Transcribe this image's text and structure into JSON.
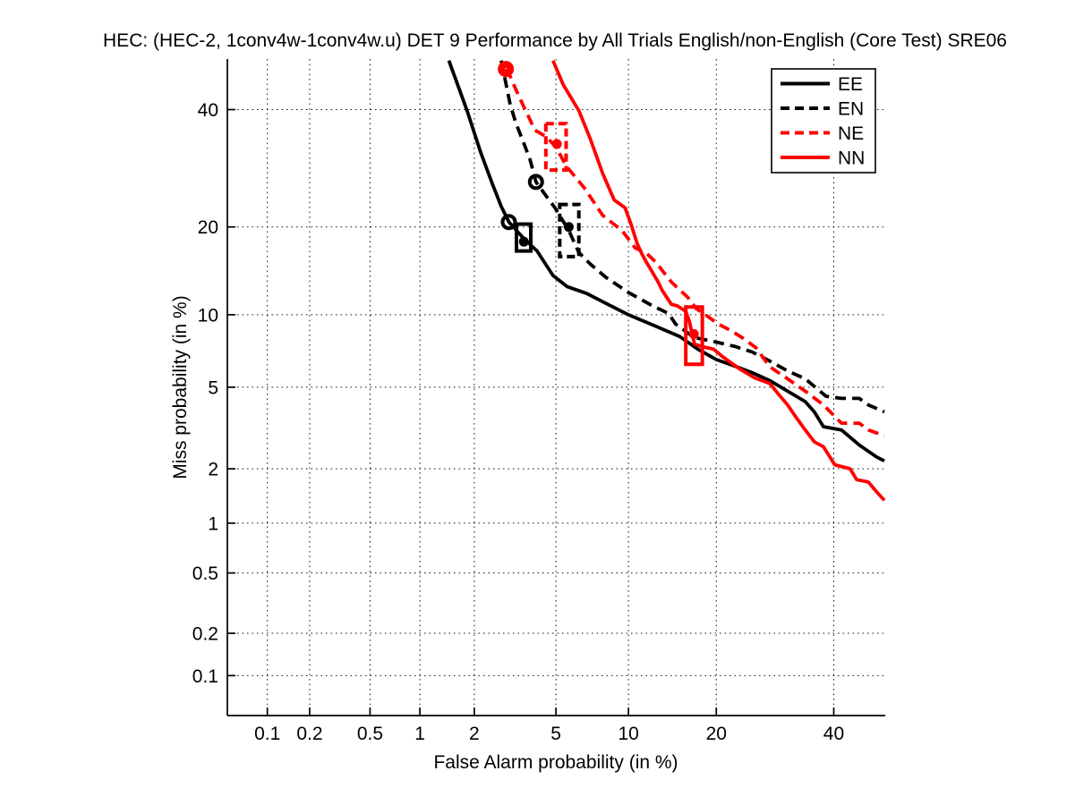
{
  "title": "HEC: (HEC-2, 1conv4w-1conv4w.u) DET 9 Performance by All Trials English/non-English (Core Test) SRE06",
  "chart_data": {
    "type": "line",
    "subtype": "DET-curve-normal-deviate-scale",
    "title": "HEC: (HEC-2, 1conv4w-1conv4w.u) DET 9 Performance by All Trials English/non-English (Core Test) SRE06",
    "xlabel": "False Alarm probability (in %)",
    "ylabel": "Miss probability (in %)",
    "xlim": [
      0.05,
      50
    ],
    "ylim": [
      0.05,
      50
    ],
    "grid": true,
    "grid_style": "dotted",
    "x_ticks": [
      0.1,
      0.2,
      0.5,
      1,
      2,
      5,
      10,
      20,
      40
    ],
    "x_tick_labels": [
      "0.1",
      "0.2",
      "0.5",
      "1",
      "2",
      "5",
      "10",
      "20",
      "40"
    ],
    "y_ticks": [
      0.1,
      0.2,
      0.5,
      1,
      2,
      5,
      10,
      20,
      40
    ],
    "y_tick_labels": [
      "0.1",
      "0.2",
      "0.5",
      "1",
      "2",
      "5",
      "10",
      "20",
      "40"
    ],
    "colors": {
      "black": "#000000",
      "red": "#ff0000"
    },
    "legend": {
      "position": "top-right",
      "entries": [
        "EE",
        "EN",
        "NE",
        "NN"
      ]
    },
    "series": [
      {
        "name": "EE",
        "color": "#000000",
        "style": "solid",
        "points": [
          [
            1.46,
            49.7
          ],
          [
            1.83,
            39.8
          ],
          [
            2.16,
            32
          ],
          [
            2.48,
            26.6
          ],
          [
            2.75,
            23
          ],
          [
            3.0,
            20.7
          ],
          [
            3.55,
            18.4
          ],
          [
            4.1,
            16.8
          ],
          [
            4.85,
            13.9
          ],
          [
            5.6,
            12.7
          ],
          [
            6.8,
            12.0
          ],
          [
            7.9,
            11.2
          ],
          [
            10,
            10
          ],
          [
            12.4,
            9.1
          ],
          [
            15.3,
            8.2
          ],
          [
            17.5,
            7.3
          ],
          [
            20,
            6.6
          ],
          [
            22.6,
            6.2
          ],
          [
            25.4,
            5.8
          ],
          [
            28.3,
            5.35
          ],
          [
            31.4,
            4.8
          ],
          [
            34.6,
            4.3
          ],
          [
            36.3,
            3.85
          ],
          [
            38,
            3.27
          ],
          [
            41.5,
            3.15
          ],
          [
            45,
            2.65
          ],
          [
            48.5,
            2.3
          ],
          [
            50,
            2.2
          ]
        ]
      },
      {
        "name": "EN",
        "color": "#000000",
        "style": "dashed",
        "points": [
          [
            2.75,
            49.7
          ],
          [
            3.05,
            40.9
          ],
          [
            3.25,
            37.4
          ],
          [
            3.55,
            33.6
          ],
          [
            3.8,
            30.7
          ],
          [
            4.05,
            26.9
          ],
          [
            4.5,
            24.7
          ],
          [
            4.95,
            22.8
          ],
          [
            5.7,
            19.5
          ],
          [
            6.3,
            16.6
          ],
          [
            7.05,
            15.2
          ],
          [
            8.15,
            13.7
          ],
          [
            10,
            12.1
          ],
          [
            12.1,
            10.9
          ],
          [
            14,
            10.1
          ],
          [
            14.8,
            9.2
          ],
          [
            17,
            8.15
          ],
          [
            20,
            7.8
          ],
          [
            22.6,
            7.5
          ],
          [
            25.4,
            7.1
          ],
          [
            28.3,
            6.5
          ],
          [
            31.4,
            5.9
          ],
          [
            34.6,
            5.45
          ],
          [
            38.5,
            4.55
          ],
          [
            41.5,
            4.45
          ],
          [
            45,
            4.45
          ],
          [
            46.8,
            4.15
          ],
          [
            50,
            3.85
          ]
        ]
      },
      {
        "name": "NE",
        "color": "#ff0000",
        "style": "dashed",
        "points": [
          [
            2.9,
            48
          ],
          [
            3.05,
            46.5
          ],
          [
            3.25,
            43.9
          ],
          [
            3.45,
            41.6
          ],
          [
            3.7,
            39
          ],
          [
            4,
            36.1
          ],
          [
            4.5,
            34.9
          ],
          [
            5,
            33
          ],
          [
            5.55,
            29.6
          ],
          [
            6.65,
            25.9
          ],
          [
            7.9,
            21.7
          ],
          [
            8.7,
            20.5
          ],
          [
            9.45,
            19.5
          ],
          [
            10.6,
            17.2
          ],
          [
            11.7,
            16.5
          ],
          [
            12.65,
            15.4
          ],
          [
            13.5,
            14.2
          ],
          [
            14.3,
            13.2
          ],
          [
            15.35,
            12.3
          ],
          [
            16.2,
            11.65
          ],
          [
            17.3,
            10.55
          ],
          [
            18.7,
            9.9
          ],
          [
            20.3,
            9.2
          ],
          [
            22.2,
            8.65
          ],
          [
            23.9,
            8.1
          ],
          [
            26,
            7.4
          ],
          [
            28.3,
            6.15
          ],
          [
            31.4,
            5.45
          ],
          [
            34.6,
            4.8
          ],
          [
            38,
            4.15
          ],
          [
            41.5,
            3.4
          ],
          [
            45,
            3.4
          ],
          [
            46.8,
            3.15
          ],
          [
            50,
            2.95
          ]
        ]
      },
      {
        "name": "NN",
        "color": "#ff0000",
        "style": "solid",
        "points": [
          [
            4.85,
            49.7
          ],
          [
            5.4,
            44.8
          ],
          [
            6.3,
            39.8
          ],
          [
            7.05,
            34.4
          ],
          [
            7.9,
            28.4
          ],
          [
            8.8,
            24
          ],
          [
            9.7,
            22.8
          ],
          [
            10.2,
            20.5
          ],
          [
            10.8,
            17.7
          ],
          [
            11.2,
            16.5
          ],
          [
            11.65,
            15.45
          ],
          [
            12.2,
            14.4
          ],
          [
            12.85,
            13.2
          ],
          [
            13.3,
            12.3
          ],
          [
            13.8,
            11.6
          ],
          [
            14.3,
            10.95
          ],
          [
            15,
            10.8
          ],
          [
            16,
            10.3
          ],
          [
            16.45,
            9.4
          ],
          [
            16.75,
            8.5
          ],
          [
            17.1,
            7.65
          ],
          [
            18.25,
            7.45
          ],
          [
            19.6,
            7.3
          ],
          [
            20.85,
            6.8
          ],
          [
            23.5,
            6.0
          ],
          [
            25.8,
            5.5
          ],
          [
            28.3,
            5.2
          ],
          [
            29.8,
            4.65
          ],
          [
            31.4,
            4.15
          ],
          [
            33,
            3.6
          ],
          [
            34.6,
            3.15
          ],
          [
            36.3,
            2.75
          ],
          [
            38,
            2.6
          ],
          [
            40.2,
            2.1
          ],
          [
            43.2,
            2.0
          ],
          [
            44.5,
            1.75
          ],
          [
            46.8,
            1.7
          ],
          [
            48.5,
            1.5
          ],
          [
            50,
            1.35
          ]
        ]
      }
    ],
    "markers": [
      {
        "series": "EE",
        "type": "circle",
        "fa": 3.0,
        "miss": 20.7,
        "filled": false
      },
      {
        "series": "EE",
        "type": "box",
        "fa_range": [
          3.27,
          3.83
        ],
        "miss_range": [
          16.8,
          20.4
        ]
      },
      {
        "series": "EE",
        "type": "dot",
        "fa": 3.55,
        "miss": 18.0
      },
      {
        "series": "EN",
        "type": "circle",
        "fa": 4.05,
        "miss": 26.9,
        "filled": false
      },
      {
        "series": "EN",
        "type": "box",
        "fa_range": [
          5.2,
          6.3
        ],
        "miss_range": [
          16.1,
          23.3
        ]
      },
      {
        "series": "EN",
        "type": "dot",
        "fa": 5.7,
        "miss": 20.0
      },
      {
        "series": "NE",
        "type": "circle",
        "fa": 2.9,
        "miss": 48.0,
        "filled": true
      },
      {
        "series": "NE",
        "type": "box",
        "fa_range": [
          4.5,
          5.55
        ],
        "miss_range": [
          28.9,
          37.3
        ]
      },
      {
        "series": "NE",
        "type": "dot",
        "fa": 5.05,
        "miss": 33.5
      },
      {
        "series": "NN",
        "type": "box",
        "fa_range": [
          16.0,
          18.1
        ],
        "miss_range": [
          6.3,
          10.7
        ]
      },
      {
        "series": "NN",
        "type": "dot",
        "fa": 17.0,
        "miss": 8.4
      }
    ]
  }
}
